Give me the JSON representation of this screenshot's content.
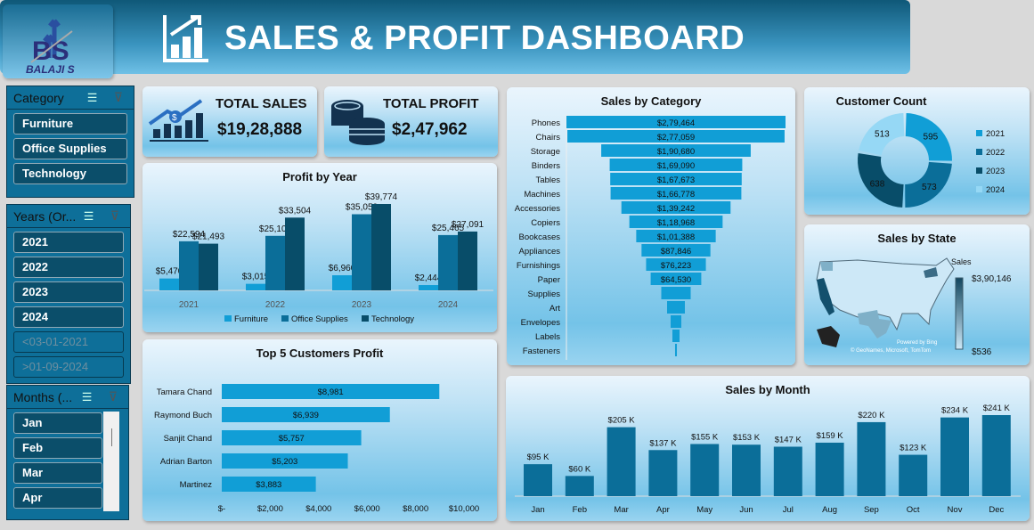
{
  "logo": {
    "text": "BS",
    "name": "BALAJI S"
  },
  "header": {
    "title": "SALES & PROFIT DASHBOARD"
  },
  "slicers": {
    "category": {
      "title": "Category",
      "items": [
        "Furniture",
        "Office Supplies",
        "Technology"
      ]
    },
    "years": {
      "title": "Years (Or...",
      "items": [
        "2021",
        "2022",
        "2023",
        "2024"
      ],
      "dim_items": [
        "<03-01-2021",
        ">01-09-2024"
      ]
    },
    "months": {
      "title": "Months (...",
      "items": [
        "Jan",
        "Feb",
        "Mar",
        "Apr"
      ]
    }
  },
  "kpis": {
    "total_sales": {
      "label": "TOTAL SALES",
      "value": "$19,28,888"
    },
    "total_profit": {
      "label": "TOTAL PROFIT",
      "value": "$2,47,962"
    }
  },
  "colors": {
    "furniture": "#119ed6",
    "office": "#0b6e99",
    "technology": "#084d69",
    "light": "#96d8f5"
  },
  "chart_data": [
    {
      "id": "profit_by_year",
      "type": "bar",
      "title": "Profit by Year",
      "categories": [
        "2021",
        "2022",
        "2023",
        "2024"
      ],
      "series": [
        {
          "name": "Furniture",
          "values": [
            5470,
            3015,
            6960,
            2444
          ],
          "labels": [
            "$5,470",
            "$3,015",
            "$6,960",
            "$2,444"
          ]
        },
        {
          "name": "Office Supplies",
          "values": [
            22594,
            25100,
            35053,
            25465
          ],
          "labels": [
            "$22,594",
            "$25,100",
            "$35,053",
            "$25,465"
          ]
        },
        {
          "name": "Technology",
          "values": [
            21493,
            33504,
            39774,
            27091
          ],
          "labels": [
            "$21,493",
            "$33,504",
            "$39,774",
            "$27,091"
          ]
        }
      ],
      "legend": "bottom"
    },
    {
      "id": "top5_customers",
      "type": "bar",
      "orientation": "horizontal",
      "title": "Top 5 Customers Profit",
      "categories": [
        "Tamara Chand",
        "Raymond Buch",
        "Sanjit Chand",
        "Adrian Barton",
        "Martinez"
      ],
      "values": [
        8981,
        6939,
        5757,
        5203,
        3883
      ],
      "labels": [
        "$8,981",
        "$6,939",
        "$5,757",
        "$5,203",
        "$3,883"
      ],
      "xticks": [
        "$-",
        "$2,000",
        "$4,000",
        "$6,000",
        "$8,000",
        "$10,000"
      ],
      "xlim": [
        0,
        10000
      ]
    },
    {
      "id": "sales_by_category",
      "type": "bar",
      "orientation": "funnel",
      "title": "Sales by Category",
      "categories": [
        "Phones",
        "Chairs",
        "Storage",
        "Binders",
        "Tables",
        "Machines",
        "Accessories",
        "Copiers",
        "Bookcases",
        "Appliances",
        "Furnishings",
        "Paper",
        "Supplies",
        "Art",
        "Envelopes",
        "Labels",
        "Fasteners"
      ],
      "values": [
        279464,
        277059,
        190680,
        169090,
        167673,
        166778,
        139242,
        118968,
        101388,
        87846,
        76223,
        64530,
        37500,
        22700,
        13600,
        9100,
        2300
      ],
      "labels": [
        "$2,79,464",
        "$2,77,059",
        "$1,90,680",
        "$1,69,090",
        "$1,67,673",
        "$1,66,778",
        "$1,39,242",
        "$1,18,968",
        "$1,01,388",
        "$87,846",
        "$76,223",
        "$64,530",
        "",
        "",
        "",
        "",
        ""
      ]
    },
    {
      "id": "customer_count",
      "type": "pie",
      "variant": "donut",
      "title": "Customer Count",
      "categories": [
        "2021",
        "2022",
        "2023",
        "2024"
      ],
      "values": [
        595,
        573,
        638,
        513
      ],
      "legend": "right"
    },
    {
      "id": "sales_by_state",
      "type": "map",
      "title": "Sales by State",
      "legend_title": "Sales",
      "max_label": "$3,90,146",
      "min_label": "$536",
      "credit1": "Powered by Bing",
      "credit2": "© GeoNames, Microsoft, TomTom"
    },
    {
      "id": "sales_by_month",
      "type": "bar",
      "title": "Sales by Month",
      "categories": [
        "Jan",
        "Feb",
        "Mar",
        "Apr",
        "May",
        "Jun",
        "Jul",
        "Aug",
        "Sep",
        "Oct",
        "Nov",
        "Dec"
      ],
      "values": [
        95,
        60,
        205,
        137,
        155,
        153,
        147,
        159,
        220,
        123,
        234,
        241
      ],
      "unit": "K",
      "labels": [
        "$95 K",
        "$60 K",
        "$205 K",
        "$137 K",
        "$155 K",
        "$153 K",
        "$147 K",
        "$159 K",
        "$220 K",
        "$123 K",
        "$234 K",
        "$241 K"
      ]
    }
  ]
}
